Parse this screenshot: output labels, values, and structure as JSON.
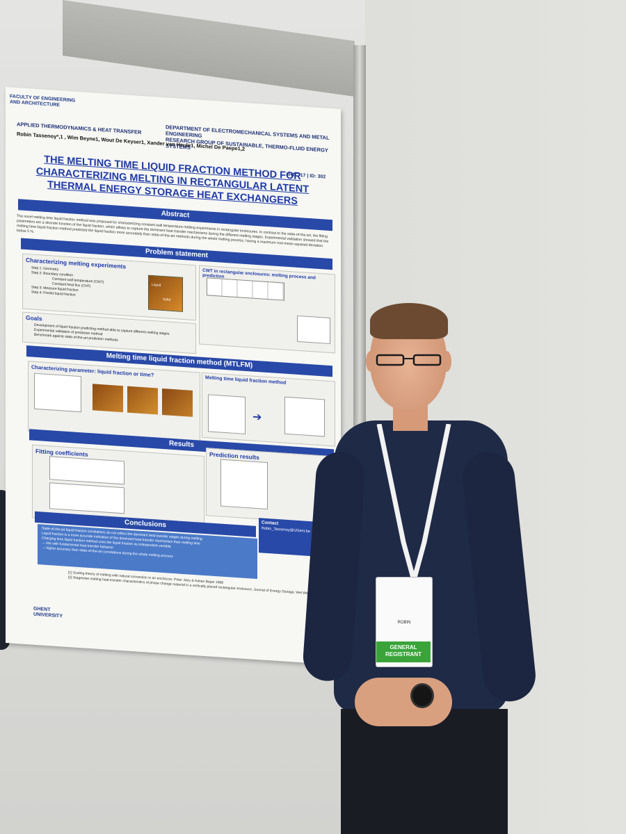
{
  "poster": {
    "faculty": "FACULTY OF ENGINEERING AND ARCHITECTURE",
    "department": "DEPARTMENT OF ELECTROMECHANICAL SYSTEMS AND METAL ENGINEERING",
    "research_group": "RESEARCH GROUP OF SUSTAINABLE, THERMO-FLUID ENERGY SYSTEMS",
    "group": "APPLIED THERMODYNAMICS & HEAT TRANSFER",
    "authors": "Robin Tassenoy*,1 , Wim Beyne1, Wout De Keyser1, Xander van Heule1, Michel De Paepe1,2",
    "conference": "IHTC-17 | ID: 302",
    "title": "THE MELTING TIME LIQUID FRACTION METHOD FOR CHARACTERIZING MELTING IN RECTANGULAR LATENT THERMAL ENERGY STORAGE HEAT EXCHANGERS",
    "sections": {
      "abstract": "Abstract",
      "problem": "Problem statement",
      "mtlfm": "Melting time liquid fraction method (MTLFM)",
      "results": "Results",
      "conclusions": "Conclusions"
    },
    "abstract_text": "The novel melting time liquid fraction method was proposed for characterizing constant wall temperature melting experiments in rectangular enclosures. In contrast to the state-of-the-art, the fitting parameters are a discrete function of the liquid fraction, which allows to capture the dominant heat transfer mechanisms during the different melting stages. Experimental validation showed that the melting time liquid fraction method predicted the liquid fraction more accurately than state-of-the-art methods during the whole melting process, having a maximum root-mean-squared deviation below 5 %.",
    "boxes": {
      "characterizing": "Characterizing melting experiments",
      "cwt": "CWT in rectangular enclosures: melting process and prediction",
      "goals": "Goals",
      "parameter": "Characterizing parameter: liquid fraction or time?",
      "mtlfm_box": "Melting time liquid fraction method",
      "fitting": "Fitting coefficients",
      "prediction": "Prediction results",
      "contact": "Contact",
      "contact_email": "Robin_Tassenoy@UGent.be"
    },
    "steps": [
      "Step 1: Geometry",
      "Step 2: Boundary condition",
      "Constant wall temperature (CWT)",
      "Constant heat flux (CHF)",
      "Step 3: Measure liquid fraction",
      "Step 4: Predict liquid fraction"
    ],
    "goals": [
      "Development of liquid fraction predicting method able to capture different melting stages",
      "Experimental validation of prediction method",
      "Benchmark against state-of-the-art prediction methods"
    ],
    "labels": {
      "liquid": "Liquid",
      "solid": "Solid"
    },
    "conclusion_items": [
      "State-of-the-art liquid fraction correlations do not reflect the dominant heat transfer stages during melting",
      "Liquid fraction is a more accurate indication of the dominant heat transfer mechanism than melting time",
      "Charging time liquid fraction method uses the liquid fraction as independent variable",
      "→ link with fundamental heat transfer behavior",
      "→ higher accuracy than state-of-the-art correlations during the whole melting process"
    ],
    "references": [
      "[1] Scaling theory of melting with natural convection in an enclosure, Peter Jany & Adrian Bejan 1988",
      "[2] Stagewise melting heat transfer characteristics of phase change material in a vertically placed rectangular enclosure, Journal of Energy Storage, Wei Wang et al. 2023"
    ],
    "university": "GHENT UNIVERSITY"
  },
  "badge": {
    "name": "ROBIN",
    "category": "GENERAL REGISTRANT"
  }
}
